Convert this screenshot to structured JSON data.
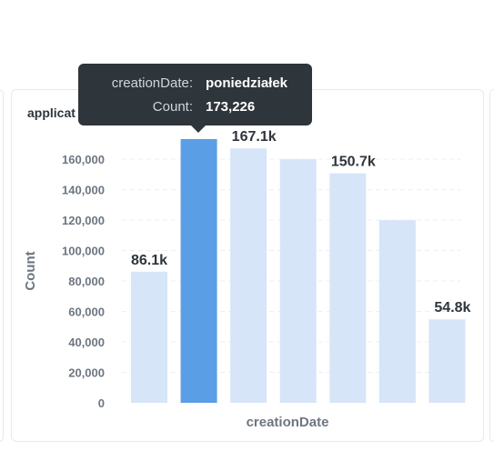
{
  "card": {
    "title": "applicat"
  },
  "tooltip": {
    "rows": [
      {
        "key": "creationDate:",
        "value": "poniedziałek"
      },
      {
        "key": "Count:",
        "value": "173,226"
      }
    ]
  },
  "colors": {
    "bar": "#d6e5f8",
    "bar_highlight": "#5a9fe5",
    "text": "#2e353b",
    "axis_text": "#6d7680",
    "grid": "#eceff3"
  },
  "chart_data": {
    "type": "bar",
    "xlabel": "creationDate",
    "ylabel": "Count",
    "ylim": [
      0,
      172000
    ],
    "yticks": [
      {
        "value": 0,
        "label": "0"
      },
      {
        "value": 20000,
        "label": "20,000"
      },
      {
        "value": 40000,
        "label": "40,000"
      },
      {
        "value": 60000,
        "label": "60,000"
      },
      {
        "value": 80000,
        "label": "80,000"
      },
      {
        "value": 100000,
        "label": "100,000"
      },
      {
        "value": 120000,
        "label": "120,000"
      },
      {
        "value": 140000,
        "label": "140,000"
      },
      {
        "value": 160000,
        "label": "160,000"
      }
    ],
    "values": [
      86100,
      173226,
      167100,
      160000,
      150700,
      120000,
      54800
    ],
    "data_labels": [
      "86.1k",
      "",
      "167.1k",
      "",
      "150.7k",
      "",
      "54.8k"
    ],
    "highlight_index": 1,
    "grid": true
  }
}
